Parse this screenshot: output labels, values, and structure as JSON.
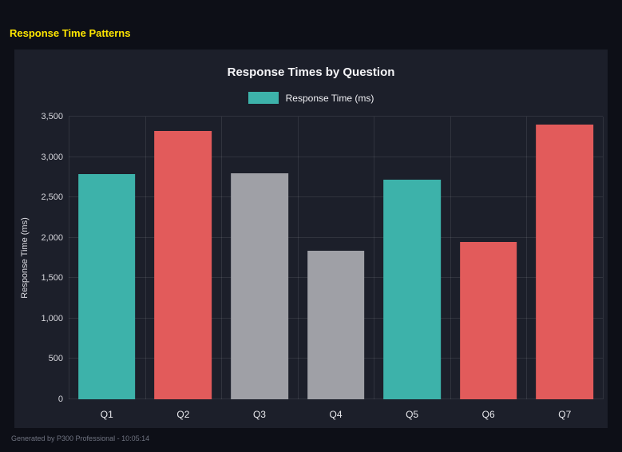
{
  "page": {
    "title": "Response Time Patterns",
    "footer": "Generated by P300 Professional - 10:05:14"
  },
  "chart_data": {
    "type": "bar",
    "title": "Response Times by Question",
    "legend": [
      {
        "label": "Response Time (ms)",
        "color": "#3db2aa"
      }
    ],
    "legend_position": "top",
    "ylabel": "Response Time (ms)",
    "xlabel": "",
    "categories": [
      "Q1",
      "Q2",
      "Q3",
      "Q4",
      "Q5",
      "Q6",
      "Q7"
    ],
    "values": [
      2790,
      3320,
      2800,
      1840,
      2720,
      1950,
      3400
    ],
    "bar_colors": [
      "#3db2aa",
      "#e25b5b",
      "#9fa0a6",
      "#9fa0a6",
      "#3db2aa",
      "#e25b5b",
      "#e25b5b"
    ],
    "ylim": [
      0,
      3500
    ],
    "ytick_step": 500,
    "grid": true
  },
  "colors": {
    "page_bg": "#0d0f17",
    "panel_bg": "#1c1f2a",
    "grid": "rgba(255,255,255,0.09)",
    "accent_title": "#ffe600"
  }
}
